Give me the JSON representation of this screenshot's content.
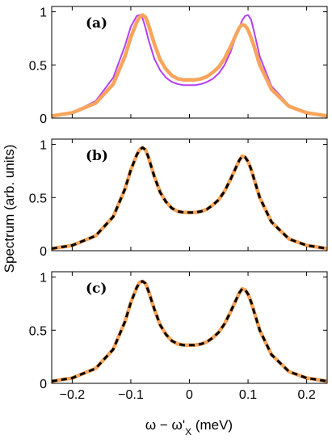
{
  "chart_data": [
    {
      "type": "line",
      "panel_label": "(a)",
      "xlim": [
        -0.235,
        0.235
      ],
      "ylim": [
        0,
        1.05
      ],
      "x_ticks": [
        -0.2,
        -0.1,
        0,
        0.1,
        0.2
      ],
      "x_tick_labels": [
        "",
        "",
        "",
        "",
        ""
      ],
      "y_ticks": [
        0,
        0.5,
        1
      ],
      "y_tick_labels": [
        "0",
        "0.5",
        "1"
      ],
      "series": [
        {
          "color": "#b540f0",
          "style": "solid",
          "x": [
            -0.235,
            -0.2,
            -0.16,
            -0.13,
            -0.11,
            -0.1,
            -0.09,
            -0.085,
            -0.08,
            -0.075,
            -0.07,
            -0.06,
            -0.05,
            -0.04,
            -0.03,
            -0.02,
            -0.01,
            0,
            0.01,
            0.02,
            0.03,
            0.04,
            0.05,
            0.06,
            0.07,
            0.08,
            0.09,
            0.095,
            0.1,
            0.105,
            0.11,
            0.12,
            0.14,
            0.17,
            0.2,
            0.235
          ],
          "y": [
            0.01,
            0.05,
            0.16,
            0.38,
            0.68,
            0.86,
            0.96,
            0.97,
            0.94,
            0.85,
            0.74,
            0.56,
            0.45,
            0.38,
            0.34,
            0.32,
            0.31,
            0.31,
            0.31,
            0.32,
            0.34,
            0.37,
            0.42,
            0.5,
            0.62,
            0.78,
            0.92,
            0.96,
            0.97,
            0.93,
            0.82,
            0.58,
            0.3,
            0.12,
            0.05,
            0.01
          ]
        },
        {
          "color": "#f7a55c",
          "style": "solid",
          "x": [
            -0.235,
            -0.2,
            -0.16,
            -0.13,
            -0.11,
            -0.1,
            -0.09,
            -0.085,
            -0.08,
            -0.075,
            -0.07,
            -0.06,
            -0.05,
            -0.04,
            -0.03,
            -0.02,
            -0.01,
            0,
            0.01,
            0.02,
            0.03,
            0.04,
            0.05,
            0.06,
            0.07,
            0.08,
            0.085,
            0.09,
            0.095,
            0.1,
            0.105,
            0.11,
            0.12,
            0.14,
            0.17,
            0.2,
            0.235
          ],
          "y": [
            0.02,
            0.05,
            0.14,
            0.32,
            0.58,
            0.76,
            0.9,
            0.95,
            0.97,
            0.95,
            0.88,
            0.7,
            0.55,
            0.46,
            0.4,
            0.37,
            0.36,
            0.36,
            0.36,
            0.37,
            0.39,
            0.43,
            0.48,
            0.56,
            0.67,
            0.79,
            0.85,
            0.88,
            0.87,
            0.83,
            0.76,
            0.68,
            0.5,
            0.27,
            0.11,
            0.05,
            0.02
          ]
        }
      ]
    },
    {
      "type": "line",
      "panel_label": "(b)",
      "xlim": [
        -0.235,
        0.235
      ],
      "ylim": [
        0,
        1.05
      ],
      "x_ticks": [
        -0.2,
        -0.1,
        0,
        0.1,
        0.2
      ],
      "x_tick_labels": [
        "",
        "",
        "",
        "",
        ""
      ],
      "y_ticks": [
        0,
        0.5,
        1
      ],
      "y_tick_labels": [
        "0",
        "0.5",
        "1"
      ],
      "series": [
        {
          "color": "#f7a55c",
          "style": "solid",
          "x": [
            -0.235,
            -0.2,
            -0.16,
            -0.13,
            -0.11,
            -0.1,
            -0.09,
            -0.085,
            -0.08,
            -0.075,
            -0.07,
            -0.06,
            -0.05,
            -0.04,
            -0.03,
            -0.02,
            -0.01,
            0,
            0.01,
            0.02,
            0.03,
            0.04,
            0.05,
            0.06,
            0.07,
            0.08,
            0.085,
            0.09,
            0.095,
            0.1,
            0.105,
            0.11,
            0.12,
            0.14,
            0.17,
            0.2,
            0.235
          ],
          "y": [
            0.02,
            0.05,
            0.14,
            0.32,
            0.58,
            0.76,
            0.9,
            0.95,
            0.97,
            0.95,
            0.88,
            0.7,
            0.55,
            0.46,
            0.4,
            0.37,
            0.36,
            0.36,
            0.36,
            0.37,
            0.39,
            0.43,
            0.48,
            0.56,
            0.67,
            0.79,
            0.85,
            0.89,
            0.88,
            0.84,
            0.77,
            0.68,
            0.5,
            0.27,
            0.11,
            0.05,
            0.02
          ]
        },
        {
          "color": "#000000",
          "style": "dashed",
          "x": [
            -0.235,
            -0.2,
            -0.16,
            -0.13,
            -0.11,
            -0.1,
            -0.09,
            -0.085,
            -0.08,
            -0.075,
            -0.07,
            -0.06,
            -0.05,
            -0.04,
            -0.03,
            -0.02,
            -0.01,
            0,
            0.01,
            0.02,
            0.03,
            0.04,
            0.05,
            0.06,
            0.07,
            0.08,
            0.085,
            0.09,
            0.095,
            0.1,
            0.105,
            0.11,
            0.12,
            0.14,
            0.17,
            0.2,
            0.235
          ],
          "y": [
            0.02,
            0.05,
            0.14,
            0.32,
            0.58,
            0.76,
            0.9,
            0.95,
            0.97,
            0.95,
            0.88,
            0.7,
            0.55,
            0.46,
            0.4,
            0.37,
            0.36,
            0.36,
            0.36,
            0.37,
            0.39,
            0.43,
            0.48,
            0.56,
            0.67,
            0.79,
            0.85,
            0.89,
            0.88,
            0.84,
            0.77,
            0.68,
            0.5,
            0.27,
            0.11,
            0.05,
            0.02
          ]
        }
      ]
    },
    {
      "type": "line",
      "panel_label": "(c)",
      "xlim": [
        -0.235,
        0.235
      ],
      "ylim": [
        0,
        1.05
      ],
      "x_ticks": [
        -0.2,
        -0.1,
        0,
        0.1,
        0.2
      ],
      "x_tick_labels": [
        "−0.2",
        "−0.1",
        "0",
        "0.1",
        "0.2"
      ],
      "y_ticks": [
        0,
        0.5,
        1
      ],
      "y_tick_labels": [
        "0",
        "0.5",
        "1"
      ],
      "series": [
        {
          "color": "#f7a55c",
          "style": "solid",
          "x": [
            -0.235,
            -0.2,
            -0.16,
            -0.13,
            -0.11,
            -0.1,
            -0.09,
            -0.085,
            -0.08,
            -0.075,
            -0.07,
            -0.06,
            -0.05,
            -0.04,
            -0.03,
            -0.02,
            -0.01,
            0,
            0.01,
            0.02,
            0.03,
            0.04,
            0.05,
            0.06,
            0.07,
            0.08,
            0.085,
            0.09,
            0.095,
            0.1,
            0.105,
            0.11,
            0.12,
            0.14,
            0.17,
            0.2,
            0.235
          ],
          "y": [
            0.02,
            0.05,
            0.14,
            0.32,
            0.58,
            0.76,
            0.9,
            0.95,
            0.96,
            0.94,
            0.87,
            0.7,
            0.55,
            0.46,
            0.4,
            0.37,
            0.36,
            0.36,
            0.36,
            0.37,
            0.39,
            0.43,
            0.48,
            0.56,
            0.67,
            0.79,
            0.85,
            0.89,
            0.88,
            0.84,
            0.77,
            0.68,
            0.5,
            0.27,
            0.11,
            0.05,
            0.02
          ]
        },
        {
          "color": "#000000",
          "style": "dashed",
          "x": [
            -0.235,
            -0.2,
            -0.16,
            -0.13,
            -0.11,
            -0.1,
            -0.09,
            -0.085,
            -0.08,
            -0.075,
            -0.07,
            -0.06,
            -0.05,
            -0.04,
            -0.03,
            -0.02,
            -0.01,
            0,
            0.01,
            0.02,
            0.03,
            0.04,
            0.05,
            0.06,
            0.07,
            0.08,
            0.085,
            0.09,
            0.095,
            0.1,
            0.105,
            0.11,
            0.12,
            0.14,
            0.17,
            0.2,
            0.235
          ],
          "y": [
            0.02,
            0.05,
            0.14,
            0.32,
            0.58,
            0.76,
            0.9,
            0.95,
            0.96,
            0.94,
            0.87,
            0.7,
            0.55,
            0.46,
            0.4,
            0.37,
            0.36,
            0.36,
            0.36,
            0.37,
            0.39,
            0.43,
            0.48,
            0.56,
            0.67,
            0.79,
            0.85,
            0.89,
            0.88,
            0.84,
            0.77,
            0.68,
            0.5,
            0.27,
            0.11,
            0.05,
            0.02
          ]
        }
      ]
    }
  ],
  "ylabel": "Spectrum (arb. units)",
  "xlabel": {
    "prefix": "ω − ω'",
    "subscript": "X",
    "suffix": " (meV)"
  }
}
